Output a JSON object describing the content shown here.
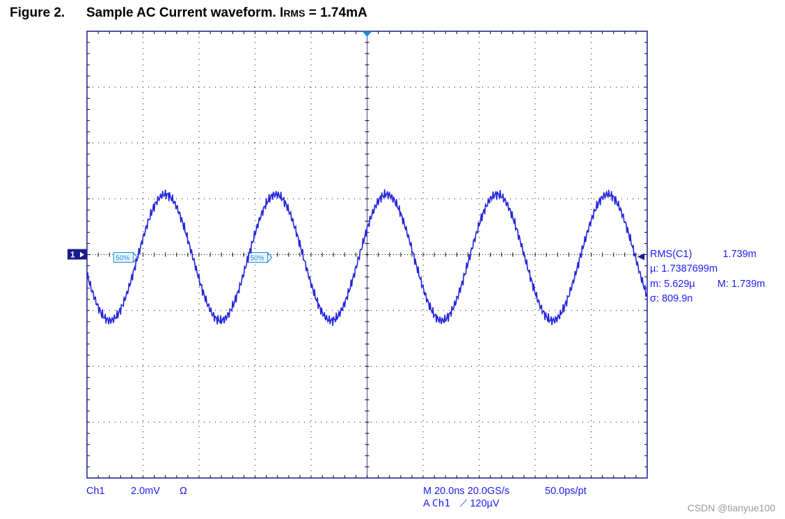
{
  "figure": {
    "label": "Figure 2.",
    "title_main": "Sample AC Current waveform. I",
    "title_sub": "RMS",
    "title_tail": " = 1.74mA"
  },
  "chart_data": {
    "type": "line",
    "title": "Sample AC Current waveform. IRMS = 1.74mA",
    "xlabel": "",
    "ylabel": "",
    "x_unit": "ns",
    "y_unit": "mV",
    "grid": true,
    "xlim": [
      -100,
      100
    ],
    "ylim": [
      -8,
      8
    ],
    "x_divisions": 10,
    "y_divisions": 8,
    "series": [
      {
        "color": "#2424dc",
        "period_ns": 39.5,
        "amplitude_mV": 2.26,
        "offset_mV": -0.1,
        "x": [
          -100,
          -95,
          -90,
          -85,
          -80,
          -75,
          -70,
          -65,
          -60,
          -55,
          -50,
          -45,
          -40,
          -35,
          -30,
          -25,
          -20,
          -15,
          -10,
          -5,
          0,
          5,
          10,
          15,
          20,
          25,
          30,
          35,
          40,
          45,
          50,
          55,
          60,
          65,
          70,
          75,
          80,
          85,
          90,
          95,
          100
        ],
        "y": [
          -0.7,
          -2.1,
          -2.3,
          -1.1,
          0.7,
          2.0,
          2.1,
          0.9,
          -0.8,
          -2.1,
          -2.3,
          -1.2,
          0.6,
          2.0,
          2.1,
          1.0,
          -0.8,
          -2.1,
          -2.2,
          -1.2,
          0.5,
          1.9,
          2.1,
          1.0,
          -0.7,
          -2.1,
          -2.3,
          -1.3,
          0.5,
          1.9,
          2.2,
          1.1,
          -0.6,
          -2.0,
          -2.2,
          -1.3,
          0.4,
          1.9,
          2.2,
          1.2,
          -0.1
        ]
      }
    ],
    "ground_marker_label": "1",
    "level_markers": [
      "50%",
      "50%"
    ],
    "level_markers_x": [
      -83,
      -35
    ],
    "measurements": {
      "name": "RMS(C1)",
      "value": "1.739m",
      "mean_label": "µ:",
      "mean": "1.7387699m",
      "min_label": "m:",
      "min": "5.629µ",
      "max_label": "M:",
      "max": "1.739m",
      "sigma_label": "σ:",
      "sigma": "809.9n"
    },
    "footer": {
      "channel": "Ch1",
      "volts_per_div": "2.0mV",
      "impedance": "Ω",
      "timebase": "M 20.0ns",
      "sample_rate": "20.0GS/s",
      "resolution": "50.0ps/pt",
      "trigger_prefix": "A",
      "trigger_source": "Ch1",
      "trigger_slope": "⟋",
      "trigger_level": "120µV"
    }
  },
  "watermark": "CSDN @tianyue100",
  "colors": {
    "trace": "#2424dc",
    "grid": "#000000",
    "frame": "#1a1a8c",
    "marker": "#1a8cd8",
    "text": "#1a1aff"
  }
}
